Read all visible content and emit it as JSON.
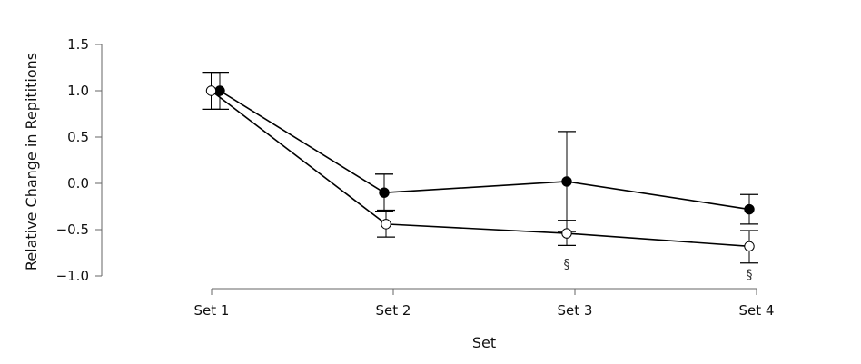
{
  "chart_data": {
    "type": "line",
    "xlabel": "Set",
    "ylabel": "Relative Change in Repititions",
    "categories": [
      "Set 1",
      "Set 2",
      "Set 3",
      "Set 4"
    ],
    "ylim": [
      -1.0,
      1.5
    ],
    "yticks": [
      "1.5",
      "1.0",
      "0.5",
      "0.0",
      "−0.5",
      "−1.0"
    ],
    "ytick_values": [
      1.5,
      1.0,
      0.5,
      0.0,
      -0.5,
      -1.0
    ],
    "grid": false,
    "series": [
      {
        "marker": "filled",
        "color": "#000000",
        "values": [
          1.0,
          -0.1,
          0.02,
          -0.28
        ],
        "error_upper": [
          1.2,
          0.1,
          0.56,
          -0.12
        ],
        "error_lower": [
          0.8,
          -0.3,
          -0.52,
          -0.44
        ]
      },
      {
        "marker": "open",
        "color": "#000000",
        "values": [
          1.0,
          -0.44,
          -0.54,
          -0.68
        ],
        "error_upper": [
          1.2,
          -0.29,
          -0.4,
          -0.51
        ],
        "error_lower": [
          0.8,
          -0.58,
          -0.67,
          -0.86
        ]
      }
    ],
    "annotations": [
      {
        "category": "Set 3",
        "y": -0.87,
        "text": "§"
      },
      {
        "category": "Set 4",
        "y": -0.98,
        "text": "§"
      }
    ]
  }
}
